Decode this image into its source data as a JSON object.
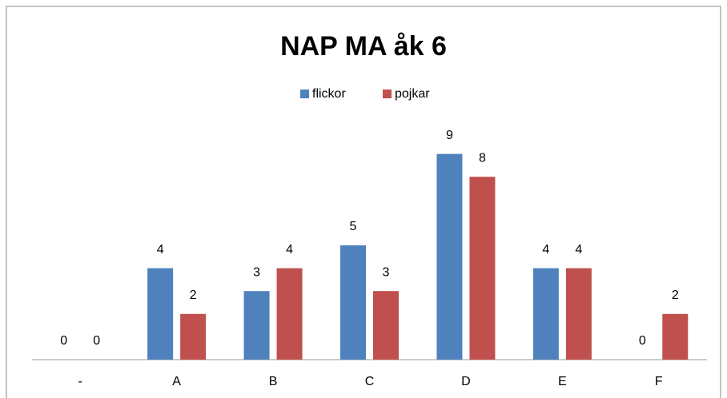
{
  "chart_data": {
    "type": "bar",
    "title": "NAP MA åk 6",
    "categories": [
      "-",
      "A",
      "B",
      "C",
      "D",
      "E",
      "F"
    ],
    "series": [
      {
        "name": "flickor",
        "color": "#4f81bd",
        "values": [
          0,
          4,
          3,
          5,
          9,
          4,
          0
        ]
      },
      {
        "name": "pojkar",
        "color": "#c0504d",
        "values": [
          0,
          2,
          4,
          3,
          8,
          4,
          2
        ]
      }
    ],
    "ylim": [
      0,
      10
    ],
    "legend": "top"
  }
}
